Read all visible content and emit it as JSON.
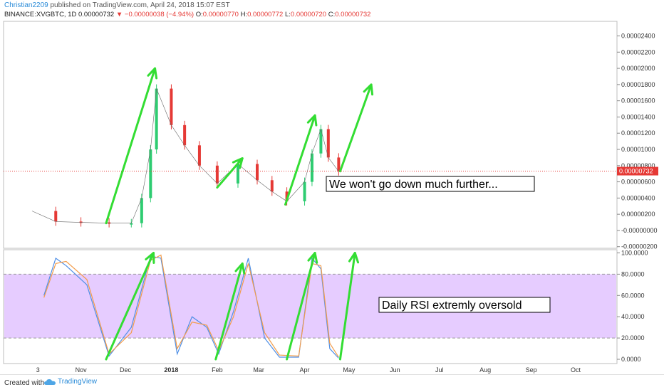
{
  "header": {
    "author": "Christian2209",
    "published_text": "published on TradingView.com, April 24, 2018 15:07 EST",
    "symbol": "BINANCE:XVGBTC, 1D",
    "last": "0.00000732",
    "change": "−0.00000038 (−4.94%)",
    "o_label": "O:",
    "o_value": "0.00000770",
    "h_label": "H:",
    "h_value": "0.00000772",
    "l_label": "L:",
    "l_value": "0.00000720",
    "c_label": "C:",
    "c_value": "0.00000732"
  },
  "footer": {
    "created_with": "Created with",
    "brand": "TradingView"
  },
  "colors": {
    "up": "#2ecc71",
    "down": "#e53935",
    "arrow": "#33dd33",
    "rsi_k": "#4f8fe6",
    "rsi_d": "#f39c4a",
    "rsi_band": "#e6ccff"
  },
  "chart_data": [
    {
      "type": "candlestick",
      "price_scale_labels": [
        "0.00002400",
        "0.00002200",
        "0.00002000",
        "0.00001800",
        "0.00001600",
        "0.00001400",
        "0.00001200",
        "0.00001000",
        "0.00000800",
        "0.00000600",
        "0.00000400",
        "0.00000200",
        "-0.00000000",
        "-0.00000200"
      ],
      "price_scale_values": [
        2.4e-05,
        2.2e-05,
        2e-05,
        1.8e-05,
        1.6e-05,
        1.4e-05,
        1.2e-05,
        1e-05,
        8e-06,
        6e-06,
        4e-06,
        2e-06,
        0,
        -2e-06
      ],
      "ylim": [
        -2.2e-06,
        2.58e-05
      ],
      "last_price_label": "0.00000732",
      "last_price": 7.32e-06,
      "annotation": "We won't go down much further...",
      "time_ticks": [
        "3",
        "Nov",
        "Dec",
        "2018",
        "Feb",
        "Mar",
        "Apr",
        "May",
        "Jun",
        "Jul",
        "Aug",
        "Sep",
        "Oct"
      ],
      "x": [
        "2017-09-29",
        "2017-10-15",
        "2017-11-01",
        "2017-11-20",
        "2017-12-05",
        "2017-12-12",
        "2017-12-18",
        "2017-12-22",
        "2018-01-01",
        "2018-01-10",
        "2018-01-20",
        "2018-02-01",
        "2018-02-15",
        "2018-02-28",
        "2018-03-10",
        "2018-03-20",
        "2018-04-01",
        "2018-04-06",
        "2018-04-12",
        "2018-04-17",
        "2018-04-24"
      ],
      "close": [
        2.4e-06,
        1.1e-06,
        1e-06,
        9e-07,
        9e-07,
        4e-06,
        1e-05,
        1.75e-05,
        1.3e-05,
        1.05e-05,
        8e-06,
        5.8e-06,
        8.2e-06,
        6.2e-06,
        4.8e-06,
        3.6e-06,
        6e-06,
        9.5e-06,
        1.25e-05,
        9e-06,
        7.3e-06
      ]
    },
    {
      "type": "line",
      "title": "Daily RSI extremly oversold",
      "scale_labels": [
        "100.0000",
        "80.0000",
        "60.0000",
        "40.0000",
        "20.0000",
        "0.0000"
      ],
      "scale_values": [
        100,
        80,
        60,
        40,
        20,
        0
      ],
      "ylim": [
        -4,
        103
      ],
      "band": [
        20,
        80
      ],
      "x": [
        "2017-10-07",
        "2017-10-15",
        "2017-10-22",
        "2017-11-05",
        "2017-11-20",
        "2017-12-05",
        "2017-12-18",
        "2017-12-25",
        "2018-01-05",
        "2018-01-15",
        "2018-01-25",
        "2018-02-02",
        "2018-02-12",
        "2018-02-22",
        "2018-03-05",
        "2018-03-15",
        "2018-03-28",
        "2018-04-06",
        "2018-04-12",
        "2018-04-18",
        "2018-04-24"
      ],
      "series": [
        {
          "name": "",
          "values": [
            60,
            95,
            88,
            70,
            3,
            30,
            97,
            95,
            5,
            40,
            30,
            5,
            45,
            95,
            20,
            2,
            2,
            95,
            85,
            10,
            1
          ]
        },
        {
          "name": "",
          "values": [
            58,
            90,
            92,
            75,
            5,
            25,
            93,
            98,
            10,
            35,
            32,
            8,
            40,
            90,
            25,
            4,
            3,
            90,
            88,
            15,
            2
          ]
        }
      ]
    }
  ],
  "arrows": [
    {
      "chart": 0,
      "x1": "2017-11-18",
      "y1": 9e-07,
      "x2": "2017-12-21",
      "y2": 2e-05
    },
    {
      "chart": 0,
      "x1": "2018-02-01",
      "y1": 5.3e-06,
      "x2": "2018-02-18",
      "y2": 8.9e-06
    },
    {
      "chart": 0,
      "x1": "2018-03-19",
      "y1": 3.2e-06,
      "x2": "2018-04-08",
      "y2": 1.42e-05
    },
    {
      "chart": 0,
      "x1": "2018-04-25",
      "y1": 7.3e-06,
      "x2": "2018-05-16",
      "y2": 1.8e-05
    },
    {
      "chart": 1,
      "x1": "2017-11-18",
      "y1": 0,
      "x2": "2017-12-20",
      "y2": 100
    },
    {
      "chart": 1,
      "x1": "2018-01-31",
      "y1": 0,
      "x2": "2018-02-18",
      "y2": 90
    },
    {
      "chart": 1,
      "x1": "2018-03-20",
      "y1": 0,
      "x2": "2018-04-08",
      "y2": 100
    },
    {
      "chart": 1,
      "x1": "2018-04-25",
      "y1": 0,
      "x2": "2018-05-05",
      "y2": 100
    }
  ]
}
